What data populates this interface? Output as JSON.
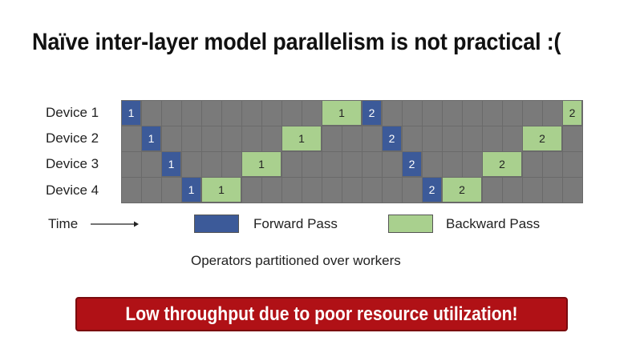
{
  "title": "Naïve inter-layer model parallelism is not practical :(",
  "devices": [
    "Device 1",
    "Device 2",
    "Device 3",
    "Device 4"
  ],
  "schedule": {
    "total_slots": 23,
    "blocks": [
      {
        "device": 0,
        "start": 0,
        "span": 1,
        "type": "forward",
        "label": "1"
      },
      {
        "device": 1,
        "start": 1,
        "span": 1,
        "type": "forward",
        "label": "1"
      },
      {
        "device": 2,
        "start": 2,
        "span": 1,
        "type": "forward",
        "label": "1"
      },
      {
        "device": 3,
        "start": 3,
        "span": 1,
        "type": "forward",
        "label": "1"
      },
      {
        "device": 3,
        "start": 4,
        "span": 2,
        "type": "backward",
        "label": "1"
      },
      {
        "device": 2,
        "start": 6,
        "span": 2,
        "type": "backward",
        "label": "1"
      },
      {
        "device": 1,
        "start": 8,
        "span": 2,
        "type": "backward",
        "label": "1"
      },
      {
        "device": 0,
        "start": 10,
        "span": 2,
        "type": "backward",
        "label": "1"
      },
      {
        "device": 0,
        "start": 12,
        "span": 1,
        "type": "forward",
        "label": "2"
      },
      {
        "device": 1,
        "start": 13,
        "span": 1,
        "type": "forward",
        "label": "2"
      },
      {
        "device": 2,
        "start": 14,
        "span": 1,
        "type": "forward",
        "label": "2"
      },
      {
        "device": 3,
        "start": 15,
        "span": 1,
        "type": "forward",
        "label": "2"
      },
      {
        "device": 3,
        "start": 16,
        "span": 2,
        "type": "backward",
        "label": "2"
      },
      {
        "device": 2,
        "start": 18,
        "span": 2,
        "type": "backward",
        "label": "2"
      },
      {
        "device": 1,
        "start": 20,
        "span": 2,
        "type": "backward",
        "label": "2"
      },
      {
        "device": 0,
        "start": 22,
        "span": 1,
        "type": "backward",
        "label": "2"
      }
    ]
  },
  "legend": {
    "time_label": "Time",
    "forward_label": "Forward Pass",
    "backward_label": "Backward Pass",
    "forward_color": "#3c5a99",
    "backward_color": "#a9d08e",
    "idle_color": "#7a7a7a"
  },
  "caption": "Operators partitioned over workers",
  "banner": {
    "text": "Low throughput due to poor resource utilization!",
    "color": "#b01116"
  }
}
